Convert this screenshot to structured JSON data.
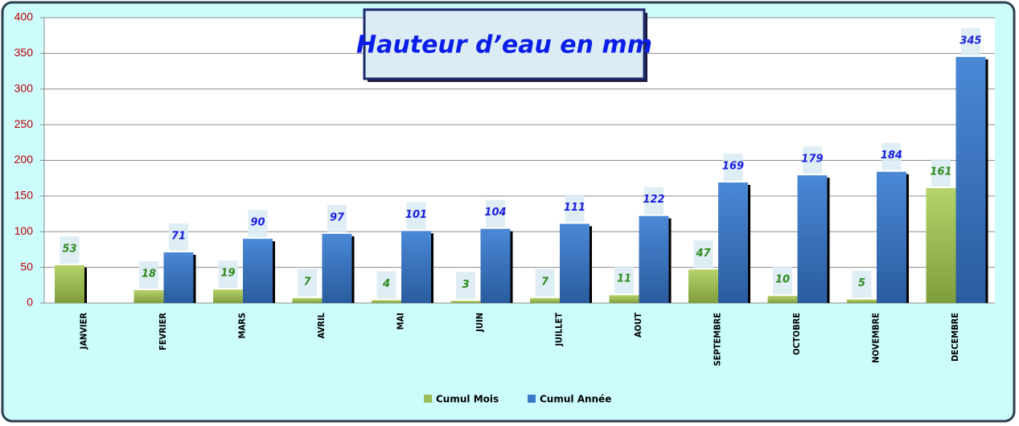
{
  "chart_data": {
    "type": "bar",
    "title": "Hauteur d’eau en mm",
    "categories": [
      "JANVIER",
      "FEVRIER",
      "MARS",
      "AVRIL",
      "MAI",
      "JUIN",
      "JUILLET",
      "AOUT",
      "SEPTEMBRE",
      "OCTOBRE",
      "NOVEMBRE",
      "DECEMBRE"
    ],
    "series": [
      {
        "name": "Cumul Mois",
        "color": "#9bbb59",
        "values": [
          53,
          18,
          19,
          7,
          4,
          3,
          7,
          11,
          47,
          10,
          5,
          161
        ]
      },
      {
        "name": "Cumul Année",
        "color": "#3a78c9",
        "values": [
          null,
          71,
          90,
          97,
          101,
          104,
          111,
          122,
          169,
          179,
          184,
          345
        ]
      }
    ],
    "ylim": [
      0,
      400
    ],
    "yticks": [
      0,
      50,
      100,
      150,
      200,
      250,
      300,
      350,
      400
    ],
    "grid": true,
    "legend": "bottom"
  }
}
